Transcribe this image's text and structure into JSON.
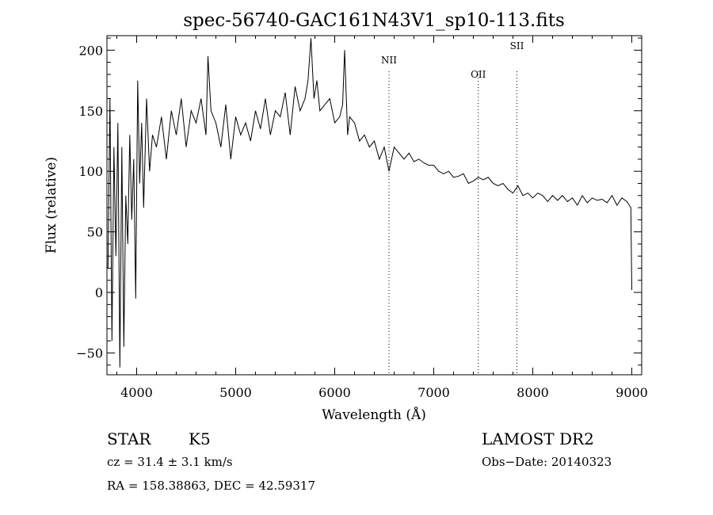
{
  "chart_data": {
    "type": "line",
    "title": "spec-56740-GAC161N43V1_sp10-113.fits",
    "xlabel": "Wavelength (Å)",
    "ylabel": "Flux (relative)",
    "xlim": [
      3700,
      9100
    ],
    "ylim": [
      -68,
      212
    ],
    "x_ticks": [
      4000,
      5000,
      6000,
      7000,
      8000,
      9000
    ],
    "y_ticks": [
      -50,
      0,
      50,
      100,
      150,
      200
    ],
    "x_tick_labels": [
      "4000",
      "5000",
      "6000",
      "7000",
      "8000",
      "9000"
    ],
    "y_tick_labels": [
      "−50",
      "0",
      "50",
      "100",
      "150",
      "200"
    ],
    "lines": [
      {
        "label": "NII",
        "x": 6548
      },
      {
        "label": "OII",
        "x": 7450
      },
      {
        "label": "SII",
        "x": 7840
      }
    ],
    "series": [
      {
        "name": "flux",
        "x": [
          3710,
          3730,
          3750,
          3770,
          3790,
          3810,
          3830,
          3850,
          3870,
          3890,
          3910,
          3930,
          3950,
          3970,
          3990,
          4010,
          4030,
          4050,
          4070,
          4100,
          4130,
          4160,
          4200,
          4250,
          4300,
          4350,
          4400,
          4450,
          4500,
          4550,
          4600,
          4650,
          4700,
          4720,
          4750,
          4800,
          4850,
          4900,
          4950,
          5000,
          5050,
          5100,
          5150,
          5200,
          5250,
          5300,
          5350,
          5400,
          5450,
          5500,
          5550,
          5600,
          5650,
          5700,
          5730,
          5760,
          5790,
          5820,
          5850,
          5900,
          5950,
          6000,
          6050,
          6080,
          6100,
          6130,
          6150,
          6200,
          6250,
          6300,
          6350,
          6400,
          6450,
          6500,
          6548,
          6600,
          6650,
          6700,
          6750,
          6800,
          6850,
          6900,
          6950,
          7000,
          7050,
          7100,
          7150,
          7200,
          7250,
          7300,
          7350,
          7400,
          7450,
          7500,
          7550,
          7600,
          7650,
          7700,
          7750,
          7800,
          7850,
          7900,
          7950,
          8000,
          8050,
          8100,
          8150,
          8200,
          8250,
          8300,
          8350,
          8400,
          8450,
          8500,
          8550,
          8600,
          8650,
          8700,
          8750,
          8800,
          8850,
          8900,
          8950,
          8990,
          9000
        ],
        "y": [
          20,
          160,
          -40,
          120,
          30,
          140,
          -62,
          120,
          -45,
          80,
          40,
          130,
          60,
          110,
          -5,
          175,
          90,
          140,
          70,
          160,
          100,
          130,
          120,
          145,
          110,
          150,
          130,
          160,
          120,
          150,
          140,
          160,
          130,
          195,
          150,
          140,
          120,
          155,
          110,
          145,
          130,
          140,
          125,
          150,
          135,
          160,
          130,
          150,
          145,
          165,
          130,
          170,
          150,
          160,
          175,
          210,
          160,
          175,
          150,
          155,
          160,
          140,
          145,
          155,
          200,
          130,
          145,
          140,
          125,
          130,
          120,
          125,
          110,
          120,
          100,
          120,
          115,
          110,
          115,
          108,
          110,
          107,
          105,
          105,
          100,
          98,
          100,
          95,
          96,
          98,
          90,
          92,
          95,
          93,
          95,
          90,
          88,
          90,
          85,
          82,
          88,
          80,
          82,
          78,
          82,
          80,
          75,
          80,
          76,
          80,
          75,
          78,
          72,
          80,
          74,
          78,
          76,
          77,
          74,
          80,
          72,
          78,
          75,
          70,
          2
        ]
      }
    ]
  },
  "labels": {
    "object_class": "STAR",
    "subclass": "K5",
    "survey": "LAMOST DR2",
    "cz": "cz = 31.4 ± 3.1 km/s",
    "obs_date": "Obs−Date: 20140323",
    "coords": "RA = 158.38863, DEC =  42.59317"
  },
  "colors": {
    "line": "#000000",
    "background": "#ffffff"
  }
}
